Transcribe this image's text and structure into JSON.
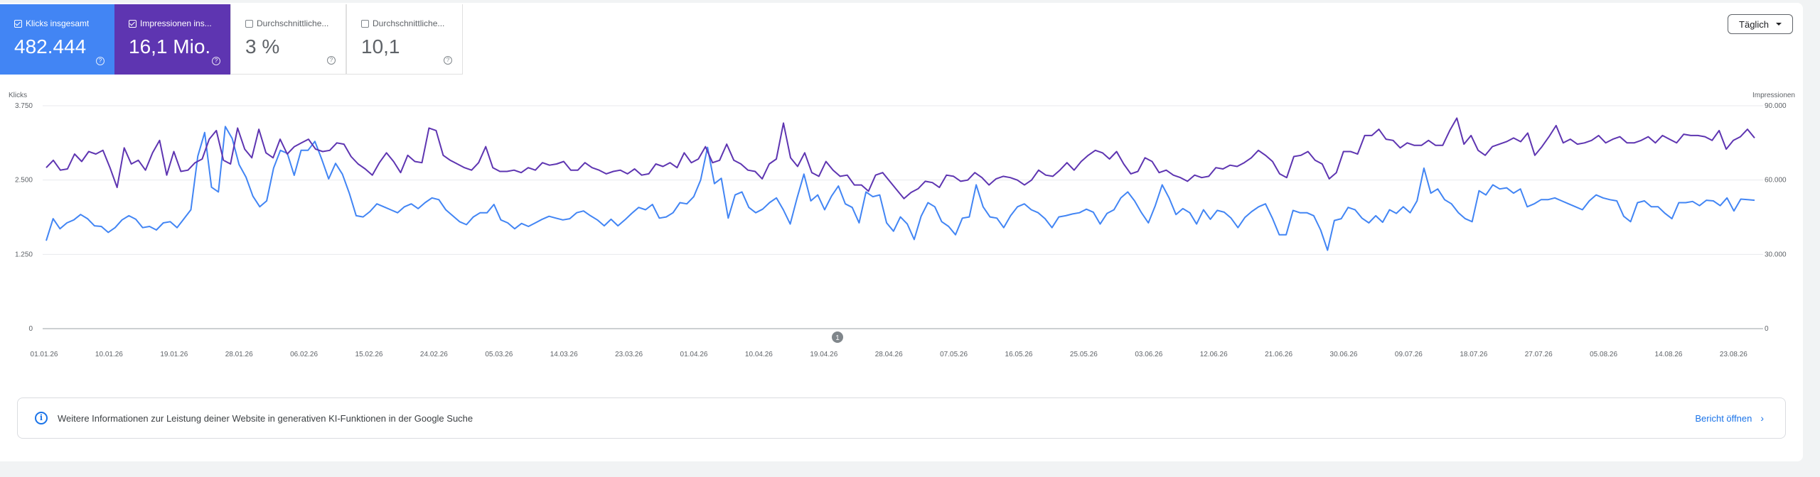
{
  "metrics": [
    {
      "label": "Klicks insgesamt",
      "value": "482.444",
      "checked": true,
      "color": "#4285f4"
    },
    {
      "label": "Impressionen ins...",
      "value": "16,1 Mio.",
      "checked": true,
      "color": "#5e35b1"
    },
    {
      "label": "Durchschnittliche...",
      "value": "3 %",
      "checked": false
    },
    {
      "label": "Durchschnittliche...",
      "value": "10,1",
      "checked": false
    }
  ],
  "help_glyph": "?",
  "dropdown": {
    "label": "Täglich"
  },
  "annotation": {
    "label": "1"
  },
  "banner": {
    "icon": "info-icon",
    "info_glyph": "i",
    "text": "Weitere Informationen zur Leistung deiner Website in generativen KI-Funktionen in der Google Suche",
    "link_label": "Bericht öffnen",
    "link_chevron": "›"
  },
  "chart_data": {
    "type": "line",
    "y_left": {
      "label": "Klicks",
      "range": [
        0,
        3750
      ],
      "ticks": [
        0,
        1250,
        2500,
        3750
      ],
      "tick_labels": [
        "0",
        "1.250",
        "2.500",
        "3.750"
      ]
    },
    "y_right": {
      "label": "Impressionen",
      "range": [
        0,
        90000
      ],
      "ticks": [
        0,
        30000,
        60000,
        90000
      ],
      "tick_labels": [
        "0",
        "30.000",
        "60.000",
        "90.000"
      ]
    },
    "x_tick_labels": [
      "01.01.26",
      "10.01.26",
      "19.01.26",
      "28.01.26",
      "06.02.26",
      "15.02.26",
      "24.02.26",
      "05.03.26",
      "14.03.26",
      "23.03.26",
      "01.04.26",
      "10.04.26",
      "19.04.26",
      "28.04.26",
      "07.05.26",
      "16.05.26",
      "25.05.26",
      "03.06.26",
      "12.06.26",
      "21.06.26",
      "30.06.26",
      "09.07.26",
      "18.07.26",
      "27.07.26",
      "05.08.26",
      "14.08.26",
      "23.08.26"
    ],
    "grid": true,
    "series": [
      {
        "name": "Klicks insgesamt",
        "axis": "left",
        "color": "#4285f4",
        "values": [
          1480,
          1850,
          1680,
          1780,
          1830,
          1920,
          1850,
          1730,
          1720,
          1620,
          1700,
          1830,
          1900,
          1840,
          1700,
          1720,
          1660,
          1780,
          1800,
          1700,
          1850,
          2000,
          2900,
          3300,
          2380,
          2300,
          3400,
          3200,
          2760,
          2550,
          2230,
          2050,
          2150,
          2700,
          3000,
          2950,
          2580,
          3000,
          3000,
          3150,
          2850,
          2520,
          2780,
          2600,
          2280,
          1900,
          1880,
          1970,
          2100,
          2050,
          2000,
          1950,
          2050,
          2100,
          2020,
          2120,
          2200,
          2170,
          2000,
          1900,
          1800,
          1750,
          1880,
          1950,
          1950,
          2090,
          1830,
          1780,
          1680,
          1770,
          1720,
          1780,
          1840,
          1890,
          1860,
          1830,
          1850,
          1950,
          1980,
          1900,
          1830,
          1730,
          1840,
          1730,
          1830,
          1940,
          2040,
          2000,
          2090,
          1860,
          1880,
          1950,
          2120,
          2100,
          2220,
          2500,
          3050,
          2440,
          2530,
          1860,
          2250,
          2300,
          2040,
          1950,
          2010,
          2120,
          2200,
          2000,
          1760,
          2200,
          2600,
          2150,
          2250,
          2000,
          2230,
          2400,
          2100,
          2040,
          1780,
          2300,
          2220,
          2250,
          1780,
          1640,
          1880,
          1760,
          1500,
          1890,
          2120,
          2050,
          1800,
          1720,
          1580,
          1860,
          1880,
          2420,
          2050,
          1880,
          1860,
          1700,
          1900,
          2050,
          2100,
          2000,
          1950,
          1850,
          1700,
          1880,
          1900,
          1930,
          1950,
          2010,
          1960,
          1760,
          1940,
          2000,
          2200,
          2300,
          2150,
          1950,
          1780,
          2070,
          2420,
          2200,
          1920,
          2020,
          1950,
          1760,
          2000,
          1840,
          1990,
          1960,
          1860,
          1700,
          1870,
          1970,
          2050,
          2100,
          1860,
          1580,
          1580,
          1990,
          1950,
          1950,
          1900,
          1660,
          1320,
          1820,
          1850,
          2040,
          2000,
          1860,
          1780,
          1900,
          1790,
          2000,
          1940,
          2050,
          1950,
          2150,
          2700,
          2280,
          2350,
          2170,
          2100,
          1950,
          1850,
          1800,
          2320,
          2250,
          2420,
          2350,
          2370,
          2280,
          2350,
          2050,
          2100,
          2170,
          2170,
          2200,
          2150,
          2100,
          2050,
          2000,
          2150,
          2250,
          2200,
          2170,
          2150,
          1890,
          1800,
          2120,
          2150,
          2050,
          2050,
          1940,
          1850,
          2120,
          2120,
          2140,
          2070,
          2160,
          2150,
          2070,
          2200,
          1980,
          2180,
          2170,
          2160
        ]
      },
      {
        "name": "Impressionen insgesamt",
        "axis": "right",
        "color": "#5e35b1",
        "values": [
          65000,
          68000,
          64000,
          64500,
          70500,
          67500,
          71500,
          70500,
          72000,
          65000,
          57000,
          73000,
          66500,
          68000,
          64000,
          71000,
          76000,
          62000,
          71500,
          63500,
          64000,
          67000,
          68500,
          76500,
          80000,
          68000,
          66500,
          81000,
          72500,
          69000,
          80500,
          71000,
          69000,
          76500,
          70500,
          73500,
          75000,
          76500,
          72500,
          71500,
          72000,
          75000,
          74500,
          69500,
          66500,
          64500,
          62000,
          67000,
          71000,
          67500,
          63000,
          70000,
          67500,
          67000,
          81000,
          80000,
          70000,
          68000,
          66500,
          65000,
          64000,
          67000,
          73500,
          65000,
          63500,
          63500,
          64000,
          63000,
          65000,
          64000,
          67000,
          66000,
          66500,
          67500,
          64000,
          64000,
          67000,
          65000,
          64000,
          62500,
          63500,
          64000,
          62500,
          64500,
          62000,
          62500,
          66500,
          65500,
          67000,
          65000,
          71000,
          67000,
          68500,
          73500,
          67000,
          68000,
          74500,
          68000,
          66500,
          64000,
          63500,
          60500,
          66500,
          68500,
          83000,
          69000,
          65500,
          71000,
          63000,
          61500,
          67500,
          64000,
          61500,
          62000,
          58000,
          58000,
          55500,
          62000,
          63000,
          59500,
          56000,
          52500,
          55000,
          56500,
          59500,
          59000,
          57000,
          62000,
          61500,
          59500,
          60000,
          63000,
          61000,
          58000,
          60500,
          61500,
          61000,
          60000,
          58000,
          60000,
          64000,
          62000,
          61500,
          64000,
          67000,
          64000,
          67500,
          70000,
          72000,
          71000,
          68500,
          71500,
          66500,
          62500,
          63500,
          69000,
          67500,
          63000,
          64000,
          62000,
          61000,
          59500,
          62000,
          61000,
          61500,
          65000,
          64500,
          66000,
          65500,
          67000,
          69000,
          72000,
          70000,
          67500,
          62500,
          61000,
          69500,
          70000,
          71500,
          68000,
          66500,
          60500,
          63000,
          71500,
          71500,
          70500,
          78000,
          78000,
          80500,
          76500,
          76000,
          73000,
          75000,
          74000,
          74000,
          76000,
          74000,
          74000,
          80000,
          85000,
          74500,
          78000,
          72000,
          70000,
          73500,
          74500,
          75500,
          77000,
          75500,
          79000,
          70000,
          73500,
          77500,
          82000,
          75000,
          76500,
          74500,
          75000,
          76000,
          78000,
          75000,
          76500,
          77500,
          75000,
          75000,
          76000,
          77500,
          75000,
          78000,
          76500,
          75000,
          78500,
          78000,
          78000,
          77500,
          76000,
          80000,
          72500,
          76000,
          77500,
          80500,
          77000
        ]
      }
    ]
  }
}
